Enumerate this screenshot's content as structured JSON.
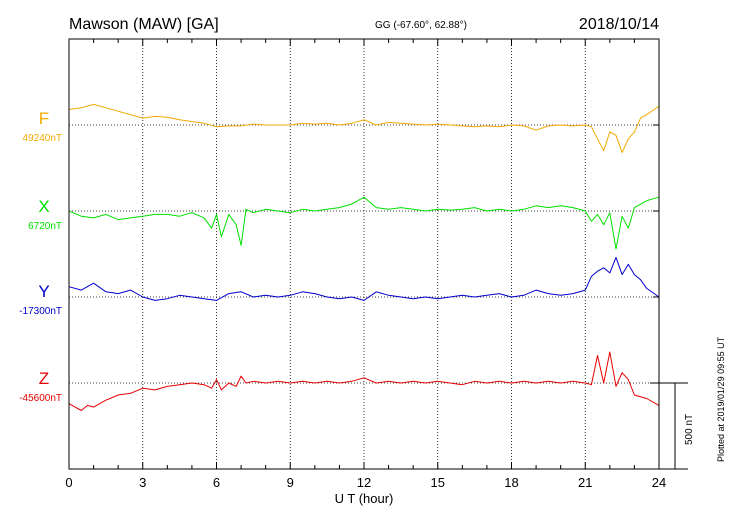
{
  "header": {
    "station": "Mawson (MAW)  [GA]",
    "coords": "GG (-67.60°,  62.88°)",
    "date": "2018/10/14"
  },
  "plotted_note": "Plotted at 2019/01/29 09:55 UT",
  "scale_bar_label": "500 nT",
  "chart_data": {
    "type": "line",
    "title": "Mawson (MAW)  [GA]",
    "xlabel": "U T (hour)",
    "ylabel": "",
    "xlim": [
      0,
      24
    ],
    "x_ticks": [
      "0",
      "3",
      "6",
      "9",
      "12",
      "15",
      "18",
      "21",
      "24"
    ],
    "grid": "vertical dotted at 3-hour intervals, horizontal dotted baseline per component",
    "scale_nT": 500,
    "colors": {
      "F": "#f0aa00",
      "X": "#00e000",
      "Y": "#0000cc",
      "Z": "#e60000"
    },
    "series": [
      {
        "name": "F",
        "baseline_label": "49240nT",
        "baseline_nT": 49240,
        "x": [
          0,
          0.5,
          1,
          1.5,
          2,
          2.5,
          3,
          3.5,
          4,
          4.5,
          5,
          5.5,
          6,
          6.5,
          7,
          7.5,
          8,
          8.5,
          9,
          9.5,
          10,
          10.5,
          11,
          11.5,
          12,
          12.5,
          13,
          13.5,
          14,
          14.5,
          15,
          15.5,
          16,
          16.5,
          17,
          17.5,
          18,
          18.5,
          19,
          19.5,
          20,
          20.5,
          21,
          21.25,
          21.5,
          21.75,
          22,
          22.25,
          22.5,
          22.75,
          23,
          23.25,
          23.5,
          24
        ],
        "values": [
          90,
          100,
          120,
          100,
          80,
          60,
          40,
          50,
          45,
          30,
          20,
          10,
          -10,
          -5,
          -5,
          5,
          0,
          0,
          0,
          10,
          5,
          10,
          0,
          10,
          30,
          0,
          15,
          10,
          5,
          0,
          5,
          0,
          -5,
          -10,
          -5,
          -10,
          0,
          -5,
          -30,
          -5,
          0,
          -5,
          0,
          -10,
          -80,
          -150,
          -40,
          -60,
          -160,
          -80,
          -40,
          40,
          60,
          110
        ]
      },
      {
        "name": "X",
        "baseline_label": "6720nT",
        "baseline_nT": 6720,
        "x": [
          0,
          0.5,
          1,
          1.5,
          2,
          2.5,
          3,
          3.5,
          4,
          4.5,
          5,
          5.5,
          5.8,
          6,
          6.2,
          6.5,
          6.8,
          7,
          7.2,
          7.5,
          8,
          8.5,
          9,
          9.5,
          10,
          10.5,
          11,
          11.5,
          12,
          12.5,
          13,
          13.5,
          14,
          14.5,
          15,
          15.5,
          16,
          16.5,
          17,
          17.5,
          18,
          18.5,
          19,
          19.5,
          20,
          20.5,
          21,
          21.25,
          21.5,
          21.75,
          22,
          22.25,
          22.5,
          22.75,
          23,
          23.5,
          24
        ],
        "values": [
          0,
          -30,
          -40,
          -20,
          -50,
          -40,
          -30,
          -20,
          -20,
          -30,
          -10,
          -40,
          -100,
          -20,
          -150,
          -20,
          -80,
          -200,
          10,
          -10,
          10,
          0,
          -10,
          10,
          0,
          10,
          20,
          40,
          80,
          20,
          10,
          20,
          10,
          0,
          10,
          5,
          10,
          20,
          0,
          10,
          0,
          10,
          30,
          20,
          30,
          20,
          0,
          -60,
          -20,
          -80,
          -10,
          -220,
          -30,
          -100,
          20,
          60,
          80
        ]
      },
      {
        "name": "Y",
        "baseline_label": "-17300nT",
        "baseline_nT": -17300,
        "x": [
          0,
          0.5,
          1,
          1.5,
          2,
          2.5,
          3,
          3.5,
          4,
          4.5,
          5,
          5.5,
          6,
          6.5,
          7,
          7.5,
          8,
          8.5,
          9,
          9.5,
          10,
          10.5,
          11,
          11.5,
          12,
          12.5,
          13,
          13.5,
          14,
          14.5,
          15,
          15.5,
          16,
          16.5,
          17,
          17.5,
          18,
          18.5,
          19,
          19.5,
          20,
          20.5,
          21,
          21.25,
          21.5,
          21.75,
          22,
          22.25,
          22.5,
          22.75,
          23,
          23.25,
          23.5,
          24
        ],
        "values": [
          60,
          40,
          80,
          30,
          20,
          40,
          0,
          -20,
          -10,
          10,
          0,
          -10,
          -20,
          20,
          30,
          0,
          10,
          0,
          10,
          30,
          20,
          0,
          -10,
          0,
          -20,
          30,
          10,
          0,
          -10,
          0,
          -10,
          0,
          10,
          0,
          10,
          20,
          0,
          10,
          40,
          20,
          10,
          20,
          40,
          120,
          150,
          170,
          140,
          230,
          130,
          190,
          130,
          100,
          50,
          0
        ]
      },
      {
        "name": "Z",
        "baseline_label": "-45600nT",
        "baseline_nT": -45600,
        "x": [
          0,
          0.25,
          0.5,
          0.75,
          1,
          1.5,
          2,
          2.5,
          3,
          3.5,
          4,
          4.5,
          5,
          5.5,
          5.8,
          6,
          6.2,
          6.5,
          6.8,
          7,
          7.2,
          7.5,
          8,
          8.5,
          9,
          9.5,
          10,
          10.5,
          11,
          11.5,
          12,
          12.5,
          13,
          13.5,
          14,
          14.5,
          15,
          15.5,
          16,
          16.5,
          17,
          17.5,
          18,
          18.5,
          19,
          19.5,
          20,
          20.5,
          21,
          21.25,
          21.5,
          21.75,
          22,
          22.25,
          22.5,
          22.75,
          23,
          23.5,
          24
        ],
        "values": [
          -120,
          -140,
          -160,
          -130,
          -140,
          -100,
          -70,
          -60,
          -30,
          -40,
          -20,
          -10,
          0,
          -10,
          -30,
          20,
          -40,
          0,
          -20,
          40,
          0,
          10,
          0,
          10,
          0,
          10,
          0,
          10,
          0,
          10,
          30,
          0,
          10,
          0,
          10,
          0,
          10,
          0,
          -10,
          10,
          0,
          10,
          0,
          10,
          0,
          10,
          0,
          10,
          0,
          -10,
          160,
          0,
          180,
          -20,
          60,
          20,
          -70,
          -90,
          -130
        ]
      }
    ]
  }
}
